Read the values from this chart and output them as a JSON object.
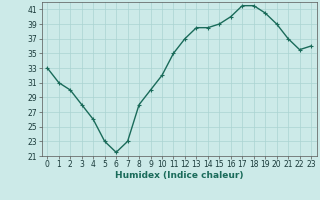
{
  "x": [
    0,
    1,
    2,
    3,
    4,
    5,
    6,
    7,
    8,
    9,
    10,
    11,
    12,
    13,
    14,
    15,
    16,
    17,
    18,
    19,
    20,
    21,
    22,
    23
  ],
  "y": [
    33,
    31,
    30,
    28,
    26,
    23,
    21.5,
    23,
    28,
    30,
    32,
    35,
    37,
    38.5,
    38.5,
    39,
    40,
    41.5,
    41.5,
    40.5,
    39,
    37,
    35.5,
    36
  ],
  "line_color": "#1a6b5a",
  "marker": "+",
  "marker_size": 3.5,
  "bg_color": "#cceae8",
  "grid_color": "#aad4d2",
  "xlabel": "Humidex (Indice chaleur)",
  "xlim": [
    -0.5,
    23.5
  ],
  "ylim": [
    21,
    42
  ],
  "yticks": [
    21,
    23,
    25,
    27,
    29,
    31,
    33,
    35,
    37,
    39,
    41
  ],
  "xticks": [
    0,
    1,
    2,
    3,
    4,
    5,
    6,
    7,
    8,
    9,
    10,
    11,
    12,
    13,
    14,
    15,
    16,
    17,
    18,
    19,
    20,
    21,
    22,
    23
  ],
  "xlabel_fontsize": 6.5,
  "tick_fontsize": 5.5,
  "line_width": 1.0,
  "marker_edge_width": 0.8
}
